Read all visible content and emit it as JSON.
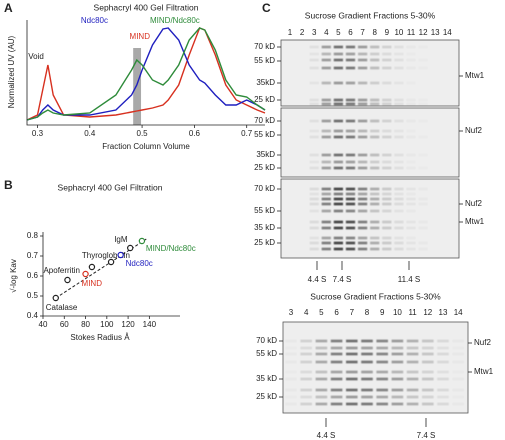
{
  "panel_labels": [
    "A",
    "B",
    "C"
  ],
  "chart_data": [
    {
      "type": "line",
      "title": "Sephacryl 400 Gel Filtration",
      "x_label": "Fraction Column Volume",
      "y_label": "Normalized UV (AU)",
      "x": [
        0.28,
        0.3,
        0.31,
        0.32,
        0.33,
        0.35,
        0.4,
        0.45,
        0.48,
        0.49,
        0.5,
        0.52,
        0.54,
        0.55,
        0.57,
        0.59,
        0.61,
        0.62,
        0.64,
        0.66,
        0.68,
        0.7,
        0.72,
        0.735
      ],
      "series": [
        {
          "name": "MIND",
          "color": "#d7301f",
          "values": [
            0.05,
            0.1,
            0.35,
            0.6,
            0.3,
            0.1,
            0.08,
            0.1,
            0.13,
            0.14,
            0.15,
            0.17,
            0.2,
            0.25,
            0.4,
            0.7,
            0.97,
            0.95,
            0.7,
            0.4,
            0.25,
            0.2,
            0.15,
            0.12
          ]
        },
        {
          "name": "Ndc80c",
          "color": "#1f1fbf",
          "values": [
            0.05,
            0.08,
            0.15,
            0.2,
            0.15,
            0.1,
            0.1,
            0.15,
            0.3,
            0.4,
            0.55,
            0.8,
            0.96,
            0.97,
            0.85,
            0.6,
            0.45,
            0.42,
            0.3,
            0.2,
            0.2,
            0.25,
            0.2,
            0.15
          ]
        },
        {
          "name": "MIND/Ndc80c",
          "color": "#2e8b3a",
          "values": [
            0.05,
            0.08,
            0.12,
            0.15,
            0.12,
            0.1,
            0.12,
            0.3,
            0.55,
            0.65,
            0.6,
            0.45,
            0.4,
            0.45,
            0.6,
            0.85,
            0.97,
            0.95,
            0.75,
            0.45,
            0.3,
            0.28,
            0.2,
            0.15
          ]
        }
      ],
      "annotations": [
        "Void"
      ],
      "shaded_span": [
        0.483,
        0.498
      ],
      "xlim": [
        0.28,
        0.735
      ],
      "ylim": [
        0,
        1.05
      ],
      "xticks": [
        0.3,
        0.4,
        0.5,
        0.6,
        0.7
      ]
    },
    {
      "type": "scatter",
      "title": "Sephacryl 400 Gel Filtration",
      "x_label": "Stokes Radius Å",
      "y_label": "√-log Kav",
      "points": [
        {
          "label": "Catalase",
          "x": 52,
          "y": 0.49,
          "color": "#222222"
        },
        {
          "label": "Apoferritin",
          "x": 63,
          "y": 0.58,
          "color": "#222222"
        },
        {
          "label": "MIND",
          "x": 80,
          "y": 0.61,
          "color": "#d7301f"
        },
        {
          "label": "Thyroglobulin",
          "x": 86,
          "y": 0.645,
          "color": "#222222"
        },
        {
          "label": null,
          "x": 104,
          "y": 0.67,
          "color": "#222222"
        },
        {
          "label": "Ndc80c",
          "x": 113,
          "y": 0.705,
          "color": "#1f1fbf"
        },
        {
          "label": "IgM",
          "x": 122,
          "y": 0.74,
          "color": "#222222"
        },
        {
          "label": "MIND/Ndc80c",
          "x": 133,
          "y": 0.775,
          "color": "#2e8b3a"
        }
      ],
      "xlim": [
        40,
        150
      ],
      "ylim": [
        0.4,
        0.8
      ],
      "xticks": [
        40,
        60,
        80,
        100,
        120,
        140
      ],
      "yticks": [
        0.4,
        0.5,
        0.6,
        0.7,
        0.8
      ]
    }
  ],
  "gels": [
    {
      "title": "Sucrose Gradient Fractions 5-30%",
      "lanes": [
        "1",
        "2",
        "3",
        "4",
        "5",
        "6",
        "7",
        "8",
        "9",
        "10",
        "11",
        "12",
        "13",
        "14"
      ],
      "blots": [
        {
          "markers": [
            "70 kD",
            "55 kD",
            "35kD",
            "25 kD"
          ],
          "proteins": [
            "Mtw1"
          ]
        },
        {
          "markers": [
            "70 kD",
            "55 kD",
            "35kD",
            "25 kD"
          ],
          "proteins": [
            "Nuf2"
          ]
        },
        {
          "markers": [
            "70 kD",
            "55 kD",
            "35 kD",
            "25 kD"
          ],
          "proteins": [
            "Nuf2",
            "Mtw1"
          ]
        }
      ],
      "sedimentation": [
        "4.4 S",
        "7.4 S",
        "11.4 S"
      ]
    },
    {
      "title": "Sucrose Gradient Fractions 5-30%",
      "lanes": [
        "3",
        "4",
        "5",
        "6",
        "7",
        "8",
        "9",
        "10",
        "11",
        "12",
        "13",
        "14"
      ],
      "blots": [
        {
          "markers": [
            "70 kD",
            "55 kD",
            "35 kD",
            "25 kD"
          ],
          "proteins": [
            "Nuf2",
            "Mtw1"
          ]
        }
      ],
      "sedimentation": [
        "4.4 S",
        "7.4 S"
      ]
    }
  ]
}
